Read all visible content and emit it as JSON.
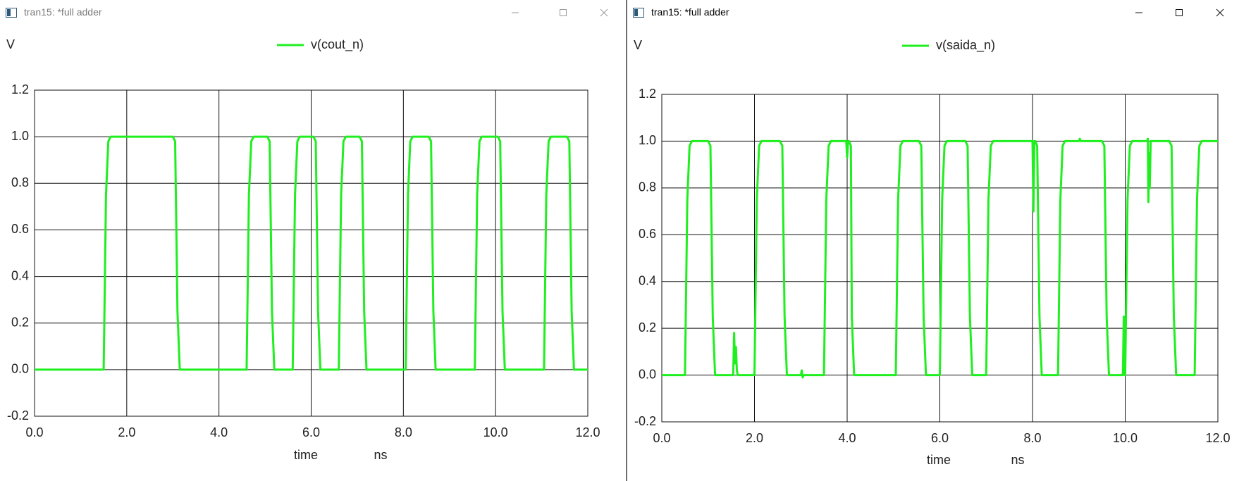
{
  "windows": [
    {
      "title": "tran15: *full adder",
      "controls": [
        "minimize",
        "maximize",
        "close"
      ],
      "chart_data": {
        "type": "line",
        "ylabel": "V",
        "xlabel": "time",
        "xunit": "ns",
        "xlim": [
          0.0,
          12.0
        ],
        "ylim": [
          -0.2,
          1.2
        ],
        "xticks": [
          "0.0",
          "2.0",
          "4.0",
          "6.0",
          "8.0",
          "10.0",
          "12.0"
        ],
        "yticks": [
          "-0.2",
          "0.0",
          "0.2",
          "0.4",
          "0.6",
          "0.8",
          "1.0",
          "1.2"
        ],
        "grid": true,
        "legend_placement": "top-center",
        "series": [
          {
            "name": "v(cout_n)",
            "color": "#1fef1f",
            "x": [
              0.0,
              1.5,
              1.55,
              1.6,
              1.65,
              3.0,
              3.05,
              3.1,
              3.15,
              4.6,
              4.65,
              4.7,
              4.75,
              5.05,
              5.1,
              5.15,
              5.2,
              5.6,
              5.65,
              5.7,
              5.75,
              6.05,
              6.1,
              6.15,
              6.2,
              6.6,
              6.65,
              6.7,
              6.75,
              7.05,
              7.1,
              7.15,
              7.2,
              8.05,
              8.1,
              8.15,
              8.2,
              8.55,
              8.6,
              8.65,
              8.7,
              9.55,
              9.6,
              9.65,
              9.7,
              10.05,
              10.1,
              10.15,
              10.2,
              11.05,
              11.1,
              11.15,
              11.2,
              11.55,
              11.6,
              11.65,
              11.7,
              12.0
            ],
            "y": [
              0.0,
              0.0,
              0.75,
              0.98,
              1.0,
              1.0,
              0.98,
              0.25,
              0.0,
              0.0,
              0.75,
              0.98,
              1.0,
              1.0,
              0.98,
              0.25,
              0.0,
              0.0,
              0.75,
              0.98,
              1.0,
              1.0,
              0.98,
              0.25,
              0.0,
              0.0,
              0.75,
              0.98,
              1.0,
              1.0,
              0.98,
              0.25,
              0.0,
              0.0,
              0.75,
              0.98,
              1.0,
              1.0,
              0.98,
              0.25,
              0.0,
              0.0,
              0.75,
              0.98,
              1.0,
              1.0,
              0.98,
              0.25,
              0.0,
              0.0,
              0.75,
              0.98,
              1.0,
              1.0,
              0.98,
              0.25,
              0.0,
              0.0
            ]
          }
        ]
      }
    },
    {
      "title": "tran15: *full adder",
      "controls": [
        "minimize",
        "maximize",
        "close"
      ],
      "chart_data": {
        "type": "line",
        "ylabel": "V",
        "xlabel": "time",
        "xunit": "ns",
        "xlim": [
          0.0,
          12.0
        ],
        "ylim": [
          -0.2,
          1.2
        ],
        "xticks": [
          "0.0",
          "2.0",
          "4.0",
          "6.0",
          "8.0",
          "10.0",
          "12.0"
        ],
        "yticks": [
          "-0.2",
          "0.0",
          "0.2",
          "0.4",
          "0.6",
          "0.8",
          "1.0",
          "1.2"
        ],
        "grid": true,
        "legend_placement": "top-center",
        "series": [
          {
            "name": "v(saida_n)",
            "color": "#1fef1f",
            "x": [
              0.0,
              0.5,
              0.55,
              0.6,
              0.65,
              1.0,
              1.05,
              1.1,
              1.15,
              1.5,
              1.54,
              1.56,
              1.58,
              1.6,
              1.62,
              1.64,
              2.0,
              2.05,
              2.1,
              2.15,
              2.55,
              2.6,
              2.65,
              2.7,
              3.0,
              3.02,
              3.04,
              3.06,
              3.5,
              3.55,
              3.6,
              3.65,
              3.98,
              4.0,
              4.02,
              4.04,
              4.08,
              4.1,
              4.15,
              4.2,
              5.05,
              5.1,
              5.15,
              5.2,
              5.55,
              5.6,
              5.65,
              5.7,
              6.0,
              6.05,
              6.1,
              6.15,
              6.55,
              6.6,
              6.65,
              6.7,
              7.0,
              7.05,
              7.1,
              7.15,
              8.0,
              8.02,
              8.04,
              8.06,
              8.1,
              8.15,
              8.2,
              8.55,
              8.6,
              8.65,
              8.7,
              9.0,
              9.02,
              9.04,
              9.06,
              9.5,
              9.55,
              9.6,
              9.65,
              9.95,
              9.97,
              9.99,
              10.0,
              10.05,
              10.1,
              10.15,
              10.45,
              10.47,
              10.49,
              10.5,
              10.52,
              10.53,
              10.55,
              10.6,
              10.95,
              11.0,
              11.05,
              11.1,
              11.5,
              11.55,
              11.6,
              11.65,
              12.0
            ],
            "y": [
              0.0,
              0.0,
              0.75,
              0.98,
              1.0,
              1.0,
              0.98,
              0.25,
              0.0,
              0.0,
              0.0,
              0.18,
              0.05,
              0.12,
              0.02,
              0.0,
              0.0,
              0.75,
              0.98,
              1.0,
              1.0,
              0.98,
              0.25,
              0.0,
              0.0,
              0.02,
              -0.01,
              0.0,
              0.0,
              0.75,
              0.98,
              1.0,
              1.0,
              0.93,
              1.0,
              1.0,
              0.98,
              0.25,
              0.0,
              0.0,
              0.0,
              0.75,
              0.98,
              1.0,
              1.0,
              0.98,
              0.25,
              0.0,
              0.0,
              0.75,
              0.98,
              1.0,
              1.0,
              0.98,
              0.25,
              0.0,
              0.0,
              0.75,
              0.98,
              1.0,
              1.0,
              0.7,
              1.0,
              1.0,
              0.98,
              0.25,
              0.0,
              0.0,
              0.75,
              0.98,
              1.0,
              1.0,
              1.01,
              1.0,
              1.0,
              1.0,
              0.98,
              0.25,
              0.0,
              0.0,
              0.25,
              0.0,
              0.0,
              0.75,
              0.98,
              1.0,
              1.0,
              1.0,
              1.01,
              0.74,
              0.95,
              0.8,
              1.0,
              1.0,
              1.0,
              0.98,
              0.25,
              0.0,
              0.0,
              0.75,
              0.98,
              1.0,
              1.0
            ]
          }
        ]
      }
    }
  ]
}
